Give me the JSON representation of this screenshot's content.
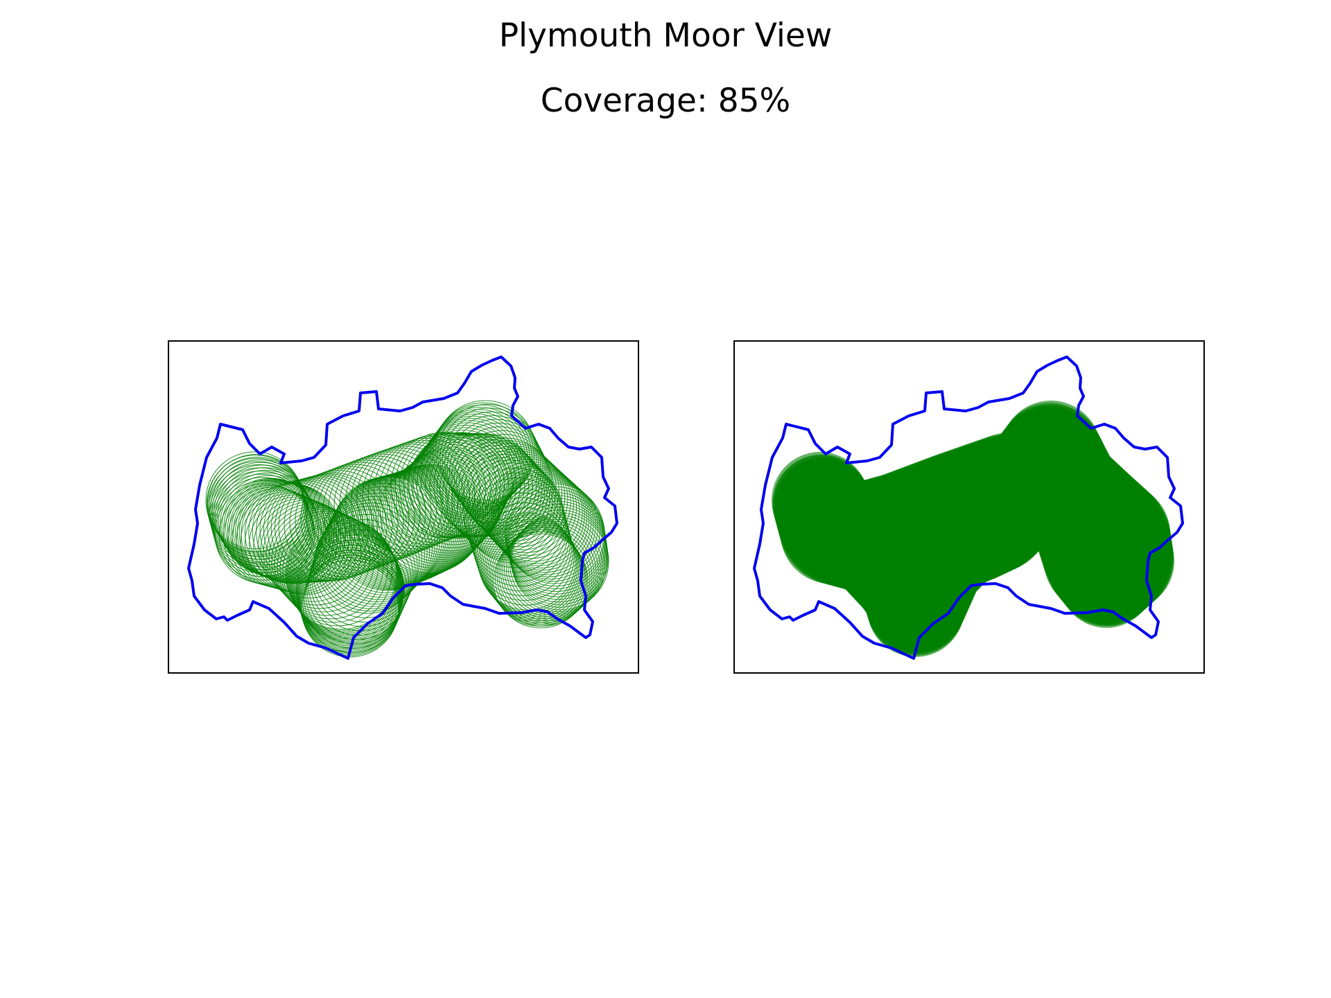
{
  "figure": {
    "title": "Plymouth Moor View",
    "subtitle": "Coverage: 85%"
  },
  "colors": {
    "boundary": "#0000ee",
    "coverage": "#008000",
    "frame": "#000000",
    "background": "#ffffff"
  },
  "panels": [
    {
      "id": "left",
      "style": "circle-outlines"
    },
    {
      "id": "right",
      "style": "filled-union"
    }
  ]
}
